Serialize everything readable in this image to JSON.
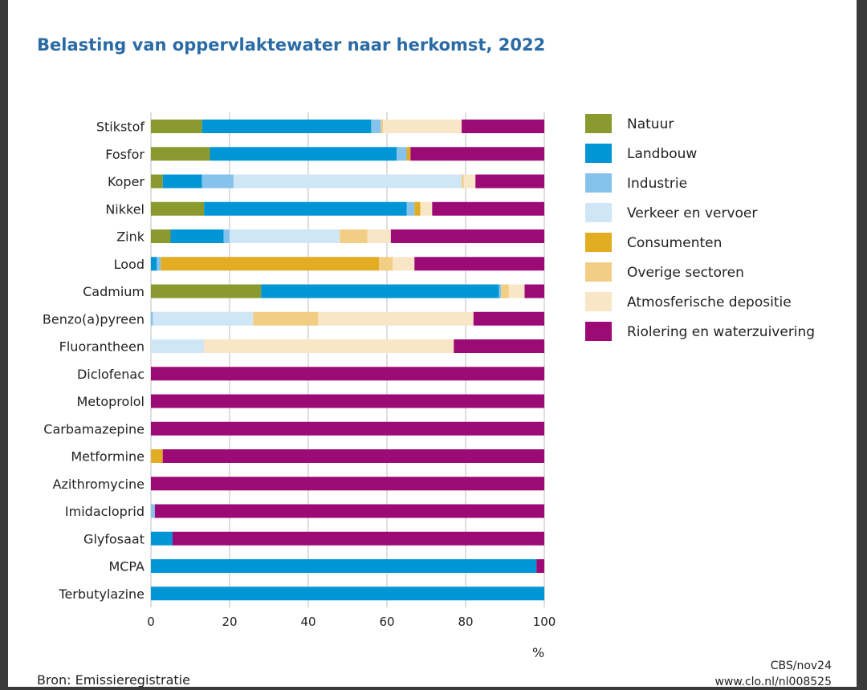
{
  "title": "Belasting van oppervlaktewater naar herkomst, 2022",
  "source": "Bron: Emissieregistratie",
  "credit_line1": "CBS/nov24",
  "credit_line2": "www.clo.nl/nl008525",
  "colors": {
    "Natuur": "#8a9a2e",
    "Landbouw": "#0096d6",
    "Industrie": "#86c3ec",
    "Verkeer en vervoer": "#cfe6f7",
    "Consumenten": "#e2ac23",
    "Overige sectoren": "#f2cd84",
    "Atmosferische depositie": "#f8e6c6",
    "Riolering en waterzuivering": "#9c0a76"
  },
  "chart_data": {
    "type": "bar",
    "orientation": "horizontal",
    "stacked": true,
    "xunit": "%",
    "xlim": [
      0,
      100
    ],
    "xticks": [
      0,
      20,
      40,
      60,
      80,
      100
    ],
    "grid": "vertical",
    "legend_position": "right",
    "categories": [
      "Stikstof",
      "Fosfor",
      "Koper",
      "Nikkel",
      "Zink",
      "Lood",
      "Cadmium",
      "Benzo(a)pyreen",
      "Fluorantheen",
      "Diclofenac",
      "Metoprolol",
      "Carbamazepine",
      "Metformine",
      "Azithromycine",
      "Imidacloprid",
      "Glyfosaat",
      "MCPA",
      "Terbutylazine"
    ],
    "series": [
      {
        "name": "Natuur",
        "values": [
          13,
          15,
          3,
          13.5,
          5,
          0,
          28,
          0,
          0,
          0,
          0,
          0,
          0,
          0,
          0,
          0,
          0,
          0
        ]
      },
      {
        "name": "Landbouw",
        "values": [
          43,
          47.5,
          10,
          51.5,
          13.5,
          1.5,
          60.5,
          0,
          0,
          0,
          0,
          0,
          0,
          0,
          0,
          5.5,
          98,
          100
        ]
      },
      {
        "name": "Industrie",
        "values": [
          2.5,
          2.5,
          8,
          2,
          1.5,
          1,
          0.5,
          0.5,
          0,
          0,
          0,
          0,
          0,
          0,
          1,
          0,
          0,
          0
        ]
      },
      {
        "name": "Verkeer en vervoer",
        "values": [
          0,
          0,
          58,
          0,
          28,
          0,
          0,
          25.5,
          13.5,
          0,
          0,
          0,
          0,
          0,
          0,
          0,
          0,
          0
        ]
      },
      {
        "name": "Consumenten",
        "values": [
          0,
          1,
          0,
          1.5,
          0,
          55.5,
          0,
          0,
          0,
          0,
          0,
          0,
          3,
          0,
          0,
          0,
          0,
          0
        ]
      },
      {
        "name": "Overige sectoren",
        "values": [
          0.5,
          0,
          0.5,
          0,
          7,
          3.5,
          2,
          16.5,
          0,
          0,
          0,
          0,
          0,
          0,
          0,
          0,
          0,
          0
        ]
      },
      {
        "name": "Atmosferische depositie",
        "values": [
          20,
          0,
          3,
          3,
          6,
          5.5,
          4,
          39.5,
          63.5,
          0,
          0,
          0,
          0,
          0,
          0,
          0,
          0,
          0
        ]
      },
      {
        "name": "Riolering en waterzuivering",
        "values": [
          21,
          34,
          17.5,
          28.5,
          39,
          33,
          5,
          18,
          23,
          100,
          100,
          100,
          97,
          100,
          99,
          94.5,
          2,
          0
        ]
      }
    ]
  }
}
